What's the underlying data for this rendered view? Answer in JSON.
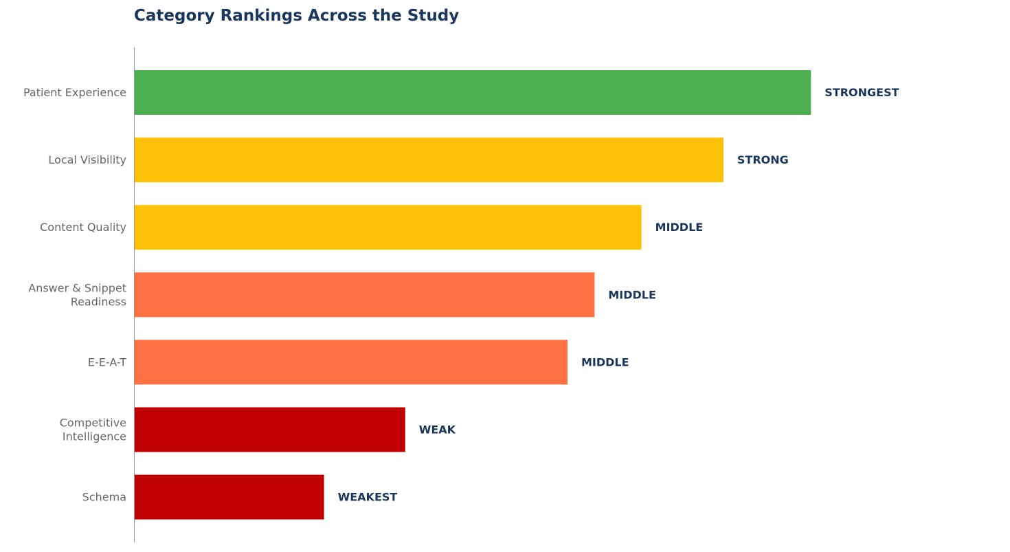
{
  "chart_data": {
    "type": "bar",
    "orientation": "horizontal",
    "title": "Category Rankings Across the Study",
    "xlabel": "",
    "ylabel": "",
    "x_axis_visible": false,
    "grid": false,
    "legend": "none",
    "xlim": [
      0,
      100
    ],
    "bars": [
      {
        "category": [
          "Patient Experience"
        ],
        "value": 85,
        "label": "STRONGEST",
        "color": "#4caf50"
      },
      {
        "category": [
          "Local Visibility"
        ],
        "value": 74,
        "label": "STRONG",
        "color": "#fdc107"
      },
      {
        "category": [
          "Content Quality"
        ],
        "value": 63.7,
        "label": "MIDDLE",
        "color": "#fdc107"
      },
      {
        "category": [
          "Answer & Snippet",
          "Readiness"
        ],
        "value": 57.8,
        "label": "MIDDLE",
        "color": "#ff7043"
      },
      {
        "category": [
          "E-E-A-T"
        ],
        "value": 54.4,
        "label": "MIDDLE",
        "color": "#ff7043"
      },
      {
        "category": [
          "Competitive",
          "Intelligence"
        ],
        "value": 34,
        "label": "WEAK",
        "color": "#c00000"
      },
      {
        "category": [
          "Schema"
        ],
        "value": 23.8,
        "label": "WEAKEST",
        "color": "#c00000"
      }
    ]
  }
}
